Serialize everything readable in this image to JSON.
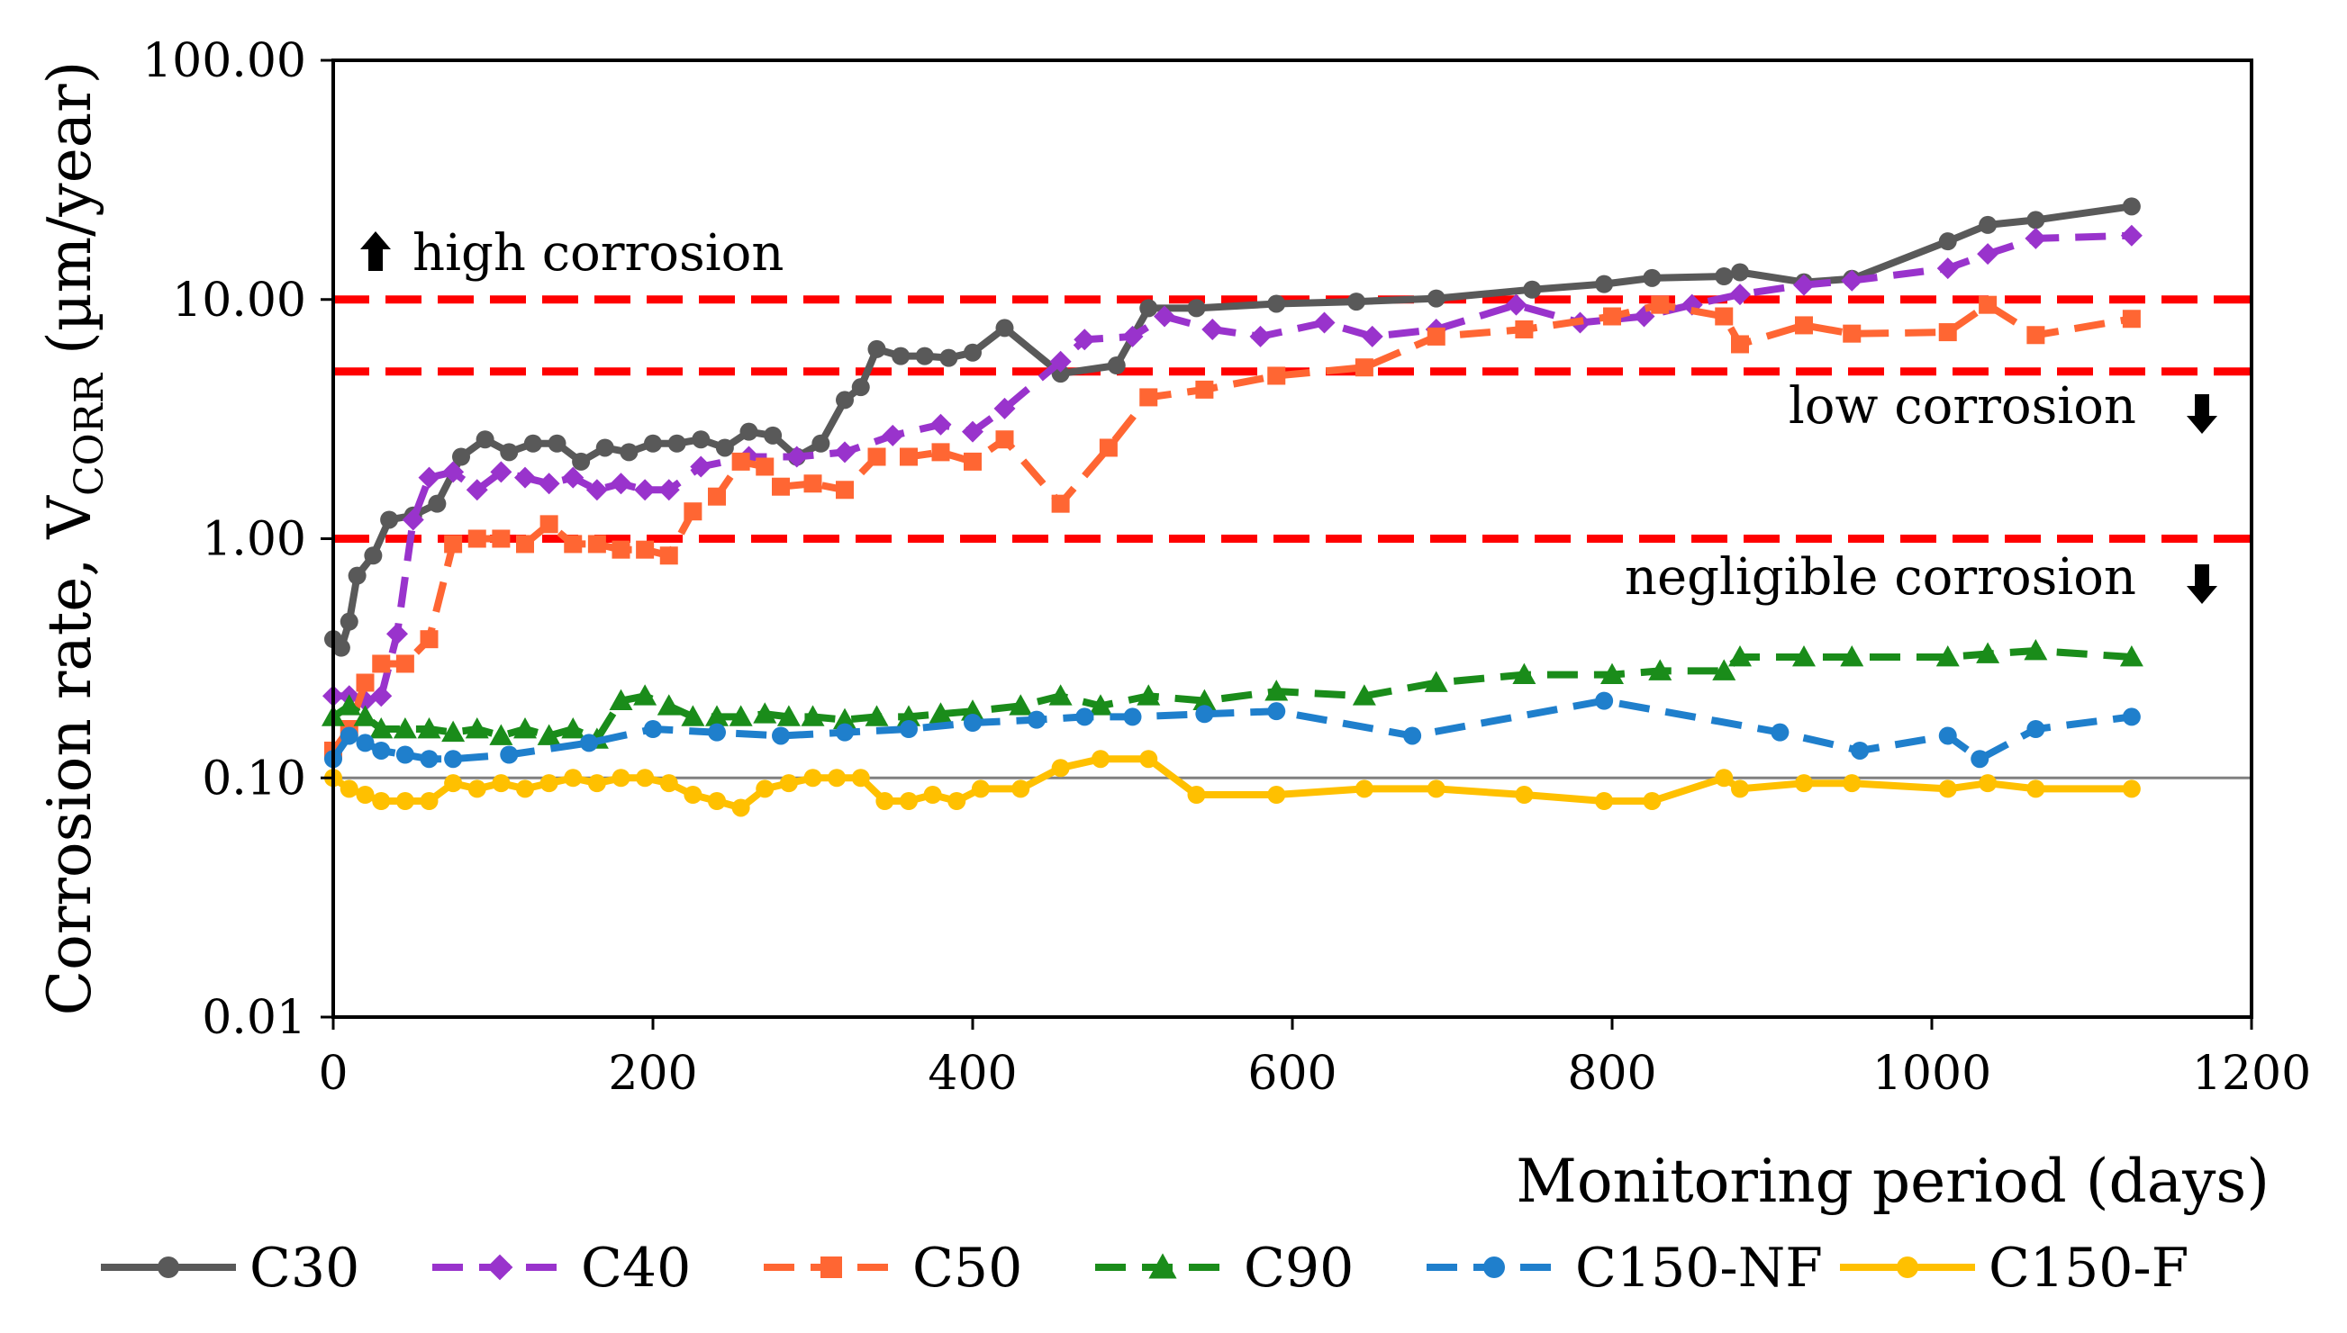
{
  "chart_data": {
    "type": "line",
    "xlabel": "Monitoring period (days)",
    "ylabel_main": "Corrosion rate, V",
    "ylabel_sub": "CORR",
    "ylabel_unit": " (µm/year)",
    "y_scale": "log",
    "xlim": [
      0,
      1200
    ],
    "ylim": [
      0.01,
      100
    ],
    "x_ticks": [
      0,
      200,
      400,
      600,
      800,
      1000,
      1200
    ],
    "x_tick_labels": [
      "0",
      "200",
      "400",
      "600",
      "800",
      "1000",
      "1200"
    ],
    "y_ticks": [
      0.01,
      0.1,
      1,
      10,
      100
    ],
    "y_tick_labels": [
      "0.01",
      "0.10",
      "1.00",
      "10.00",
      "100.00"
    ],
    "legend_position": "bottom",
    "reference_lines": [
      {
        "y": 10,
        "color": "#ff0000",
        "style": "dashed"
      },
      {
        "y": 5,
        "color": "#ff0000",
        "style": "dashed"
      },
      {
        "y": 1,
        "color": "#ff0000",
        "style": "dashed"
      },
      {
        "y": 0.1,
        "color": "#808080",
        "style": "solid"
      }
    ],
    "annotations": [
      {
        "text": "high corrosion",
        "arrow": "up"
      },
      {
        "text": "low corrosion",
        "arrow": "down"
      },
      {
        "text": "negligible corrosion",
        "arrow": "down"
      }
    ],
    "series": [
      {
        "name": "C30",
        "color": "#595959",
        "dash": "solid",
        "marker": "circle",
        "x": [
          0,
          5,
          10,
          15,
          25,
          35,
          50,
          65,
          80,
          95,
          110,
          125,
          140,
          155,
          170,
          185,
          200,
          215,
          230,
          245,
          260,
          275,
          290,
          305,
          320,
          330,
          340,
          355,
          370,
          385,
          400,
          420,
          455,
          490,
          510,
          540,
          590,
          640,
          690,
          750,
          795,
          825,
          870,
          880,
          920,
          950,
          1010,
          1035,
          1065,
          1125
        ],
        "y": [
          0.38,
          0.35,
          0.45,
          0.7,
          0.85,
          1.2,
          1.25,
          1.4,
          2.2,
          2.6,
          2.3,
          2.5,
          2.5,
          2.1,
          2.4,
          2.3,
          2.5,
          2.5,
          2.6,
          2.4,
          2.8,
          2.7,
          2.2,
          2.5,
          3.8,
          4.3,
          6.2,
          5.8,
          5.8,
          5.7,
          6.0,
          7.6,
          4.9,
          5.3,
          9.2,
          9.2,
          9.6,
          9.8,
          10.1,
          11.0,
          11.6,
          12.3,
          12.5,
          13.0,
          11.8,
          12.2,
          17.5,
          20.5,
          21.5,
          24.5
        ]
      },
      {
        "name": "C40",
        "color": "#9933cc",
        "dash": "dashed",
        "marker": "diamond",
        "x": [
          0,
          10,
          20,
          30,
          40,
          50,
          60,
          75,
          90,
          105,
          120,
          135,
          150,
          165,
          180,
          195,
          210,
          230,
          260,
          290,
          320,
          350,
          380,
          400,
          420,
          455,
          470,
          500,
          520,
          550,
          580,
          620,
          650,
          690,
          740,
          780,
          820,
          850,
          880,
          920,
          950,
          1010,
          1035,
          1065,
          1125
        ],
        "y": [
          0.22,
          0.22,
          0.21,
          0.22,
          0.4,
          1.2,
          1.8,
          1.9,
          1.6,
          1.9,
          1.8,
          1.7,
          1.8,
          1.6,
          1.7,
          1.6,
          1.6,
          2.0,
          2.2,
          2.2,
          2.3,
          2.7,
          3.0,
          2.8,
          3.5,
          5.5,
          6.8,
          7.0,
          8.5,
          7.5,
          7.0,
          8.0,
          7.0,
          7.5,
          9.5,
          8.0,
          8.5,
          9.5,
          10.5,
          11.5,
          12.0,
          13.5,
          15.5,
          18.0,
          18.5
        ]
      },
      {
        "name": "C50",
        "color": "#ff6633",
        "dash": "dashed",
        "marker": "square",
        "x": [
          0,
          10,
          20,
          30,
          45,
          60,
          75,
          90,
          105,
          120,
          135,
          150,
          165,
          180,
          195,
          210,
          225,
          240,
          255,
          270,
          280,
          300,
          320,
          340,
          360,
          380,
          400,
          420,
          455,
          485,
          510,
          545,
          590,
          645,
          690,
          745,
          800,
          830,
          870,
          880,
          920,
          950,
          1010,
          1035,
          1065,
          1125
        ],
        "y": [
          0.13,
          0.16,
          0.25,
          0.3,
          0.3,
          0.38,
          0.95,
          1.0,
          1.0,
          0.95,
          1.15,
          0.95,
          0.95,
          0.9,
          0.9,
          0.85,
          1.3,
          1.5,
          2.1,
          2.0,
          1.65,
          1.7,
          1.6,
          2.2,
          2.2,
          2.3,
          2.1,
          2.6,
          1.4,
          2.4,
          3.9,
          4.2,
          4.8,
          5.2,
          7.0,
          7.5,
          8.5,
          9.5,
          8.5,
          6.5,
          7.8,
          7.2,
          7.3,
          9.5,
          7.1,
          8.3
        ]
      },
      {
        "name": "C90",
        "color": "#1a8c1a",
        "dash": "dashed",
        "marker": "triangle",
        "x": [
          0,
          10,
          20,
          30,
          45,
          60,
          75,
          90,
          105,
          120,
          135,
          150,
          165,
          180,
          195,
          210,
          225,
          240,
          255,
          270,
          285,
          300,
          320,
          340,
          360,
          380,
          400,
          430,
          455,
          480,
          510,
          545,
          590,
          645,
          690,
          745,
          800,
          830,
          870,
          880,
          920,
          950,
          1010,
          1035,
          1065,
          1125
        ],
        "y": [
          0.18,
          0.2,
          0.18,
          0.16,
          0.16,
          0.16,
          0.155,
          0.16,
          0.15,
          0.16,
          0.15,
          0.16,
          0.145,
          0.21,
          0.22,
          0.2,
          0.18,
          0.18,
          0.18,
          0.185,
          0.18,
          0.18,
          0.175,
          0.18,
          0.18,
          0.185,
          0.19,
          0.2,
          0.22,
          0.2,
          0.22,
          0.21,
          0.23,
          0.22,
          0.25,
          0.27,
          0.27,
          0.28,
          0.28,
          0.32,
          0.32,
          0.32,
          0.32,
          0.33,
          0.34,
          0.32
        ]
      },
      {
        "name": "C150-NF",
        "color": "#1f7fcc",
        "dash": "dashed",
        "marker": "circle",
        "x": [
          0,
          10,
          20,
          30,
          45,
          60,
          75,
          110,
          160,
          200,
          240,
          280,
          320,
          360,
          400,
          440,
          470,
          500,
          545,
          590,
          675,
          795,
          905,
          955,
          1010,
          1030,
          1065,
          1125
        ],
        "y": [
          0.12,
          0.15,
          0.14,
          0.13,
          0.125,
          0.12,
          0.12,
          0.125,
          0.14,
          0.16,
          0.155,
          0.15,
          0.155,
          0.16,
          0.17,
          0.175,
          0.18,
          0.18,
          0.185,
          0.19,
          0.15,
          0.21,
          0.155,
          0.13,
          0.15,
          0.12,
          0.16,
          0.18
        ]
      },
      {
        "name": "C150-F",
        "color": "#ffc000",
        "dash": "solid",
        "marker": "circle",
        "x": [
          0,
          10,
          20,
          30,
          45,
          60,
          75,
          90,
          105,
          120,
          135,
          150,
          165,
          180,
          195,
          210,
          225,
          240,
          255,
          270,
          285,
          300,
          315,
          330,
          345,
          360,
          375,
          390,
          405,
          430,
          455,
          480,
          510,
          540,
          590,
          645,
          690,
          745,
          795,
          825,
          870,
          880,
          920,
          950,
          1010,
          1035,
          1065,
          1125
        ],
        "y": [
          0.1,
          0.09,
          0.085,
          0.08,
          0.08,
          0.08,
          0.095,
          0.09,
          0.095,
          0.09,
          0.095,
          0.1,
          0.095,
          0.1,
          0.1,
          0.095,
          0.085,
          0.08,
          0.075,
          0.09,
          0.095,
          0.1,
          0.1,
          0.1,
          0.08,
          0.08,
          0.085,
          0.08,
          0.09,
          0.09,
          0.11,
          0.12,
          0.12,
          0.085,
          0.085,
          0.09,
          0.09,
          0.085,
          0.08,
          0.08,
          0.1,
          0.09,
          0.095,
          0.095,
          0.09,
          0.095,
          0.09,
          0.09
        ]
      }
    ]
  }
}
